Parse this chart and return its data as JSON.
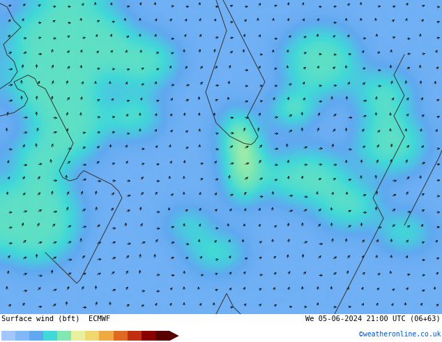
{
  "title_left": "Surface wind (bft)  ECMWF",
  "title_right": "We 05-06-2024 21:00 UTC (06+63)",
  "credit": "©weatheronline.co.uk",
  "colorbar_colors": [
    "#a0c8ff",
    "#80b8f8",
    "#60a8f0",
    "#40d8d8",
    "#80e8b0",
    "#e8f0a0",
    "#f0d870",
    "#f0a840",
    "#e06820",
    "#c03010",
    "#880000",
    "#580000"
  ],
  "colorbar_values": [
    "1",
    "2",
    "3",
    "4",
    "5",
    "6",
    "7",
    "8",
    "9",
    "10",
    "11",
    "12"
  ],
  "bg_color": "#c8f0f8",
  "map_bg_cyan": "#a0e0f0",
  "purple_color": "#b0a0d8",
  "light_green": "#d8eea0",
  "pale_yellow": "#f0eab0",
  "fig_width": 6.34,
  "fig_height": 4.9,
  "dpi": 100,
  "bottom_bar_height": 0.082,
  "font_family": "monospace"
}
